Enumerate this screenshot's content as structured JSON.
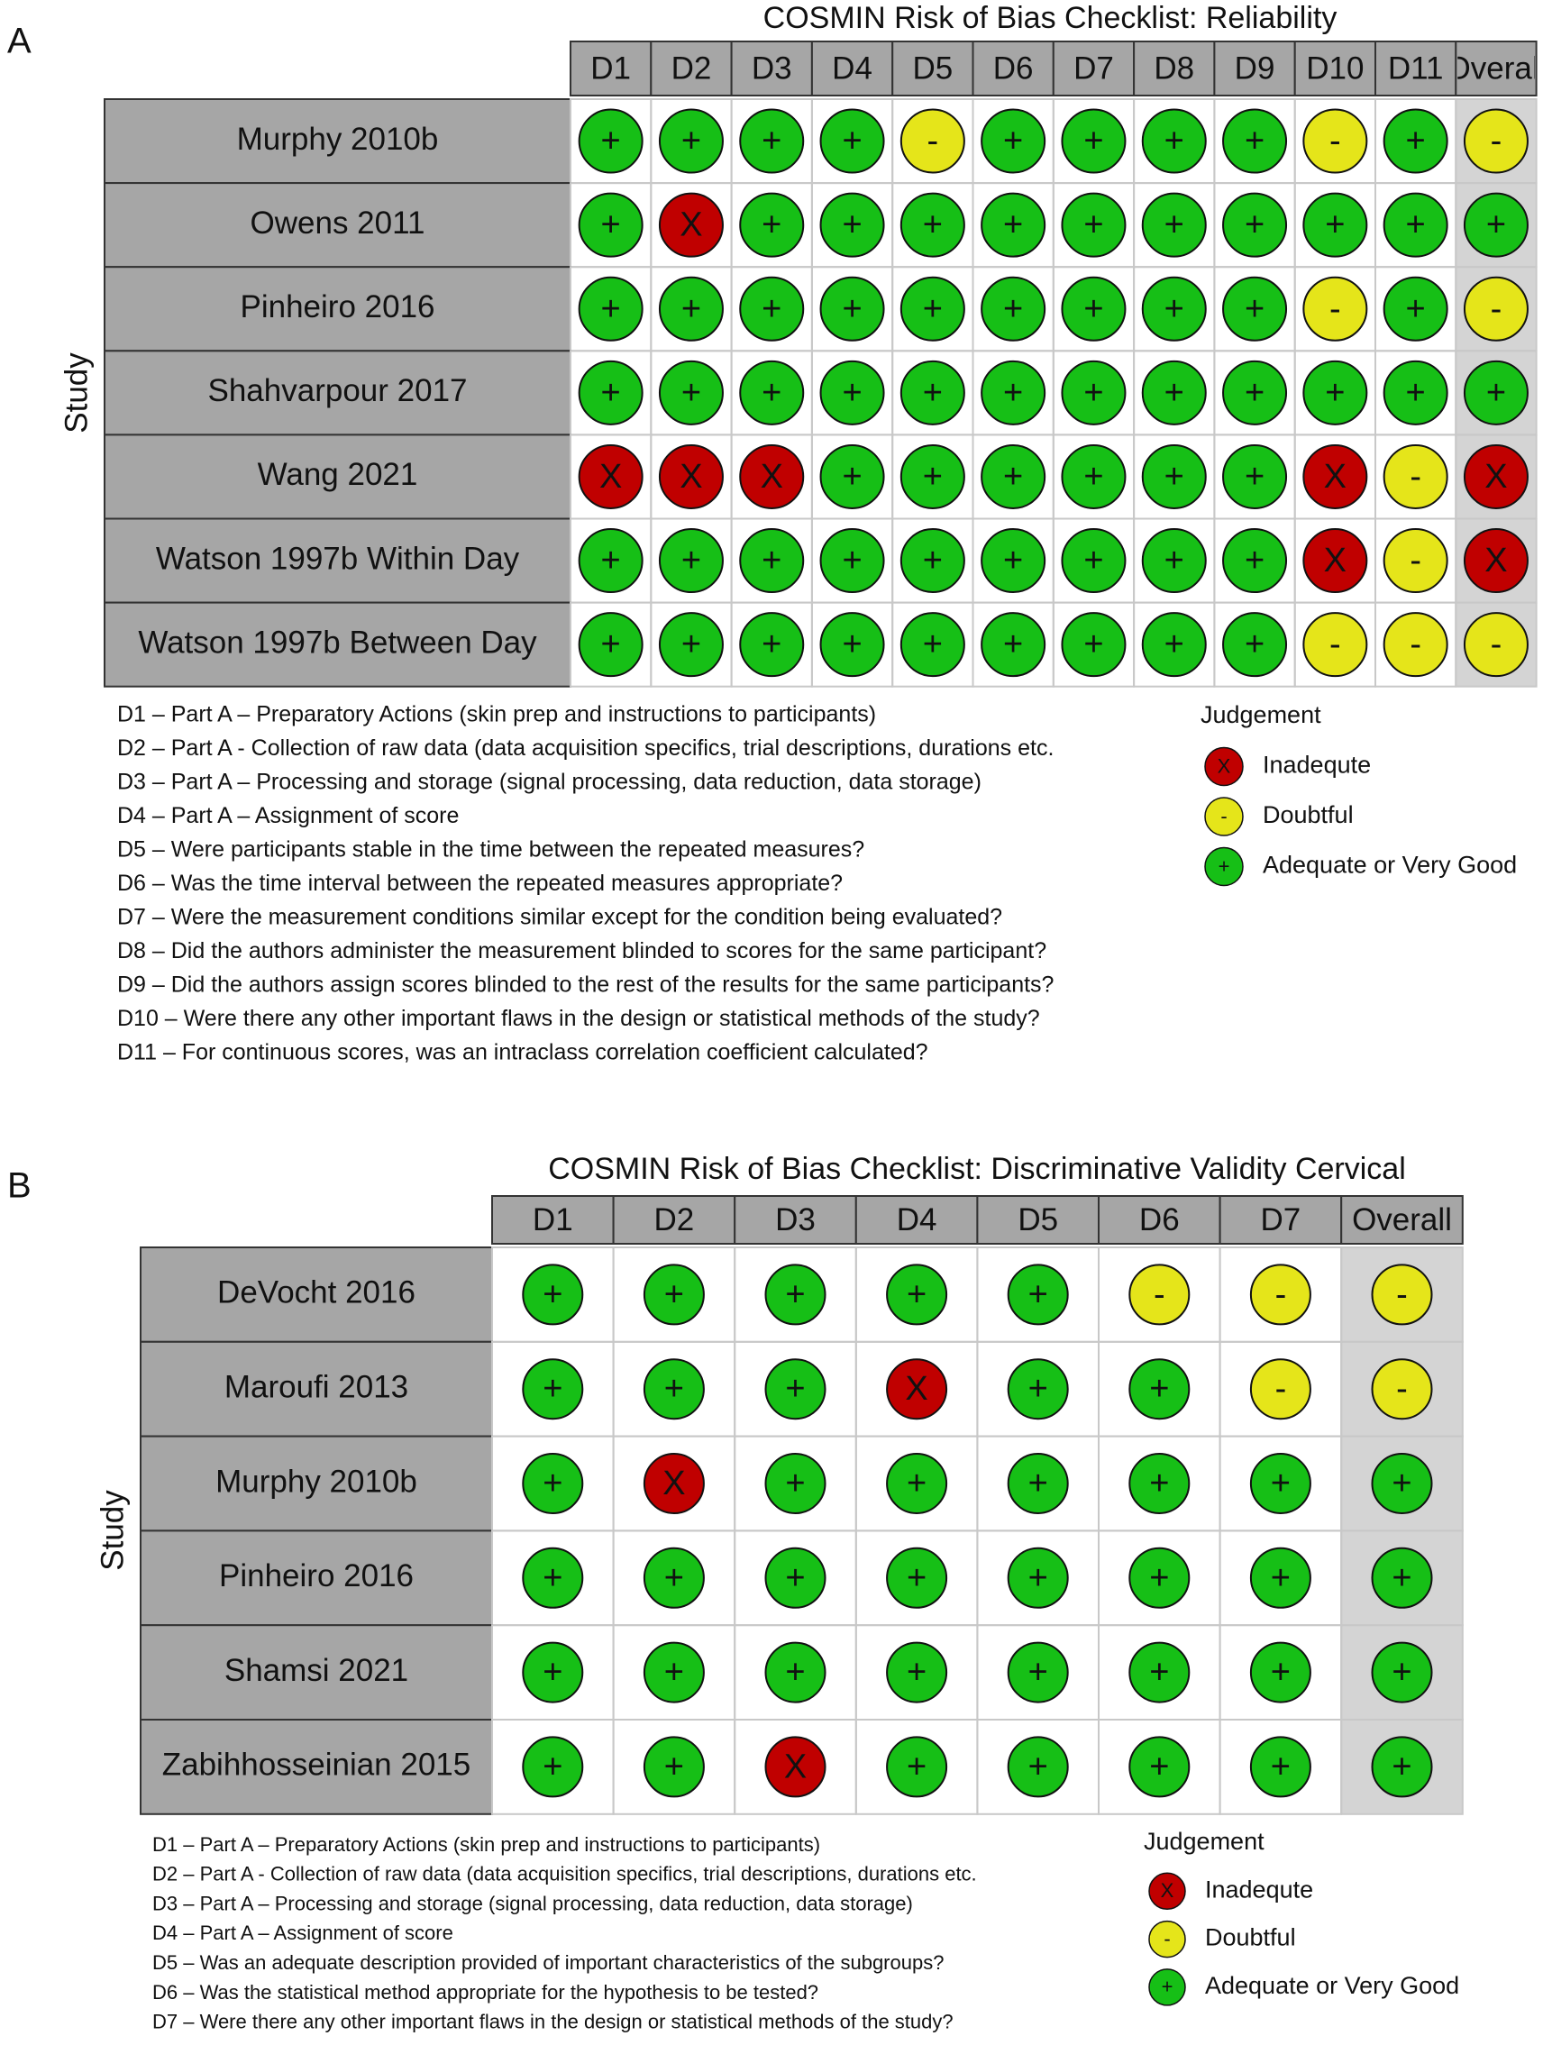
{
  "panels": [
    {
      "letter": "A",
      "title": "COSMIN Risk of Bias Checklist: Reliability",
      "y_label": "Study",
      "domains": [
        "D1",
        "D2",
        "D3",
        "D4",
        "D5",
        "D6",
        "D7",
        "D8",
        "D9",
        "D10",
        "D11",
        "Overall"
      ],
      "studies": [
        {
          "name": "Murphy 2010b",
          "judgements": [
            "+",
            "+",
            "+",
            "+",
            "-",
            "+",
            "+",
            "+",
            "+",
            "-",
            "+",
            "-"
          ]
        },
        {
          "name": "Owens 2011",
          "judgements": [
            "+",
            "X",
            "+",
            "+",
            "+",
            "+",
            "+",
            "+",
            "+",
            "+",
            "+",
            "+"
          ]
        },
        {
          "name": "Pinheiro 2016",
          "judgements": [
            "+",
            "+",
            "+",
            "+",
            "+",
            "+",
            "+",
            "+",
            "+",
            "-",
            "+",
            "-"
          ]
        },
        {
          "name": "Shahvarpour 2017",
          "judgements": [
            "+",
            "+",
            "+",
            "+",
            "+",
            "+",
            "+",
            "+",
            "+",
            "+",
            "+",
            "+"
          ]
        },
        {
          "name": "Wang 2021",
          "judgements": [
            "X",
            "X",
            "X",
            "+",
            "+",
            "+",
            "+",
            "+",
            "+",
            "X",
            "-",
            "X"
          ]
        },
        {
          "name": "Watson 1997b Within Day",
          "judgements": [
            "+",
            "+",
            "+",
            "+",
            "+",
            "+",
            "+",
            "+",
            "+",
            "X",
            "-",
            "X"
          ]
        },
        {
          "name": "Watson 1997b Between Day",
          "judgements": [
            "+",
            "+",
            "+",
            "+",
            "+",
            "+",
            "+",
            "+",
            "+",
            "-",
            "-",
            "-"
          ]
        }
      ],
      "footnotes": [
        "D1 – Part A – Preparatory Actions (skin prep and instructions to participants)",
        "D2 – Part A - Collection of raw data (data acquisition specifics, trial descriptions, durations etc.",
        "D3 – Part A – Processing and storage (signal processing, data reduction, data storage)",
        "D4 – Part A – Assignment of score",
        "D5 – Were participants stable in the time between the repeated measures?",
        "D6 – Was the time interval between the repeated measures appropriate?",
        "D7 – Were the measurement conditions similar except for the condition being evaluated?",
        "D8 – Did the authors administer the measurement blinded to scores for the same participant?",
        "D9 – Did the authors assign scores blinded to the rest of the results for the same participants?",
        "D10 – Were there any other important flaws in the design or statistical methods of the study?",
        "D11 – For continuous scores, was an intraclass correlation coefficient calculated?"
      ],
      "legend": {
        "title": "Judgement",
        "items": [
          {
            "symbol": "X",
            "label": "Inadequte",
            "color": "#c00000"
          },
          {
            "symbol": "-",
            "label": "Doubtful",
            "color": "#e5e51a"
          },
          {
            "symbol": "+",
            "label": "Adequate or Very Good",
            "color": "#16bf16"
          }
        ]
      }
    },
    {
      "letter": "B",
      "title": "COSMIN Risk of Bias Checklist: Discriminative Validity Cervical",
      "y_label": "Study",
      "domains": [
        "D1",
        "D2",
        "D3",
        "D4",
        "D5",
        "D6",
        "D7",
        "Overall"
      ],
      "studies": [
        {
          "name": "DeVocht 2016",
          "judgements": [
            "+",
            "+",
            "+",
            "+",
            "+",
            "-",
            "-",
            "-"
          ]
        },
        {
          "name": "Maroufi 2013",
          "judgements": [
            "+",
            "+",
            "+",
            "X",
            "+",
            "+",
            "-",
            "-"
          ]
        },
        {
          "name": "Murphy 2010b",
          "judgements": [
            "+",
            "X",
            "+",
            "+",
            "+",
            "+",
            "+",
            "+"
          ]
        },
        {
          "name": "Pinheiro 2016",
          "judgements": [
            "+",
            "+",
            "+",
            "+",
            "+",
            "+",
            "+",
            "+"
          ]
        },
        {
          "name": "Shamsi 2021",
          "judgements": [
            "+",
            "+",
            "+",
            "+",
            "+",
            "+",
            "+",
            "+"
          ]
        },
        {
          "name": "Zabihhosseinian 2015",
          "judgements": [
            "+",
            "+",
            "X",
            "+",
            "+",
            "+",
            "+",
            "+"
          ]
        }
      ],
      "footnotes": [
        "D1 – Part A – Preparatory Actions (skin prep and instructions to participants)",
        "D2 – Part A - Collection of raw data (data acquisition specifics, trial descriptions, durations etc.",
        "D3 – Part A – Processing and storage (signal processing, data reduction, data storage)",
        "D4 – Part A – Assignment of score",
        "D5 – Was an adequate description provided of important characteristics of the subgroups?",
        "D6 – Was the statistical method appropriate for the hypothesis to be tested?",
        "D7 – Were there any other important flaws in the design or statistical methods of the study?"
      ],
      "legend": {
        "title": "Judgement",
        "items": [
          {
            "symbol": "X",
            "label": "Inadequte",
            "color": "#c00000"
          },
          {
            "symbol": "-",
            "label": "Doubtful",
            "color": "#e5e51a"
          },
          {
            "symbol": "+",
            "label": "Adequate or Very Good",
            "color": "#16bf16"
          }
        ]
      }
    }
  ]
}
